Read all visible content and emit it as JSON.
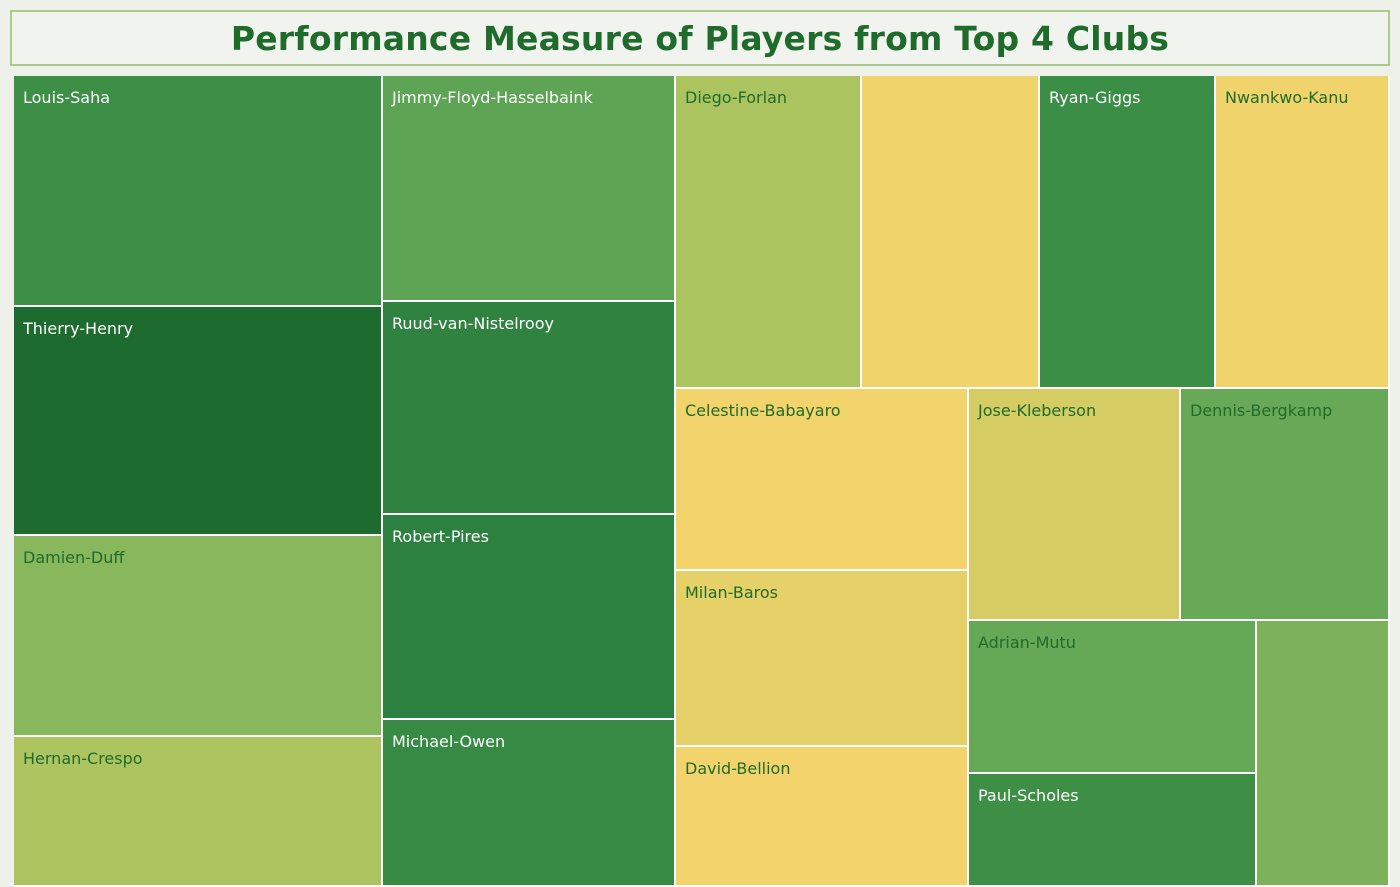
{
  "title": "Performance Measure of Players from Top 4 Clubs",
  "chart_data": {
    "type": "treemap",
    "title": "Performance Measure of Players from Top 4 Clubs",
    "nodes": [
      {
        "label": "Louis-Saha",
        "color": "#3d8f46",
        "text_color": "#ffffff"
      },
      {
        "label": "Thierry-Henry",
        "color": "#1d6b2e",
        "text_color": "#ffffff"
      },
      {
        "label": "Damien-Duff",
        "color": "#88b85b",
        "text_color": "#1f6b2b"
      },
      {
        "label": "Hernan-Crespo",
        "color": "#aec460",
        "text_color": "#1f6b2b"
      },
      {
        "label": "Jimmy-Floyd-Hasselbaink",
        "color": "#5ea455",
        "text_color": "#ffffff"
      },
      {
        "label": "Ruud-van-Nistelrooy",
        "color": "#2f8240",
        "text_color": "#ffffff"
      },
      {
        "label": "Robert-Pires",
        "color": "#2d8140",
        "text_color": "#ffffff"
      },
      {
        "label": "Michael-Owen",
        "color": "#368a43",
        "text_color": "#ffffff"
      },
      {
        "label": "Diego-Forlan",
        "color": "#acc45f",
        "text_color": "#1f6b2b"
      },
      {
        "label": "",
        "color": "#f1d36b",
        "text_color": "#1f6b2b"
      },
      {
        "label": "Ryan-Giggs",
        "color": "#3a8e46",
        "text_color": "#ffffff"
      },
      {
        "label": "Nwankwo-Kanu",
        "color": "#f1d36b",
        "text_color": "#1f6b2b"
      },
      {
        "label": "Celestine-Babayaro",
        "color": "#f2d36c",
        "text_color": "#1f6b2b"
      },
      {
        "label": "Milan-Baros",
        "color": "#e5d168",
        "text_color": "#1f6b2b"
      },
      {
        "label": "David-Bellion",
        "color": "#f2d36c",
        "text_color": "#1f6b2b"
      },
      {
        "label": "Jose-Kleberson",
        "color": "#d5cc64",
        "text_color": "#1f6b2b"
      },
      {
        "label": "Dennis-Bergkamp",
        "color": "#68a957",
        "text_color": "#1f6b2b"
      },
      {
        "label": "Adrian-Mutu",
        "color": "#65a856",
        "text_color": "#1f6b2b"
      },
      {
        "label": "",
        "color": "#7eb25a",
        "text_color": "#1f6b2b"
      },
      {
        "label": "Paul-Scholes",
        "color": "#3d8f46",
        "text_color": "#ffffff"
      }
    ]
  }
}
